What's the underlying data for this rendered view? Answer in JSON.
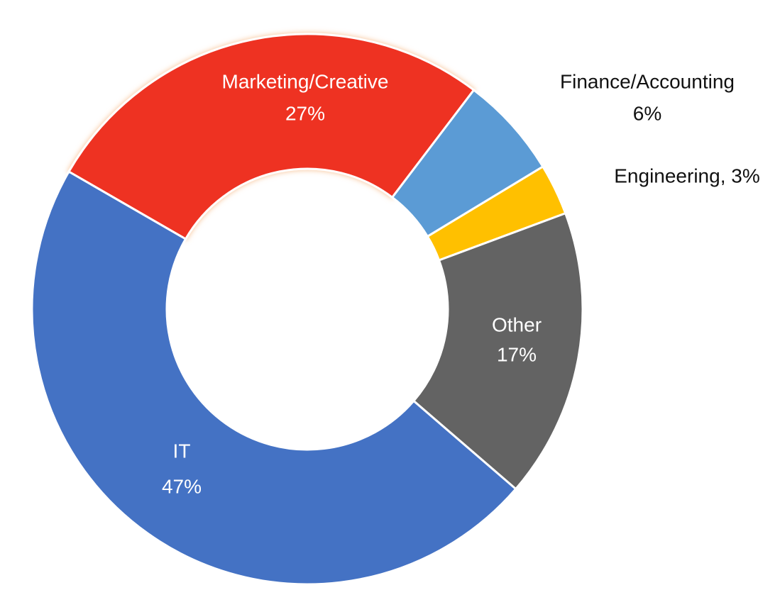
{
  "chart_data": {
    "type": "donut",
    "categories": [
      "Marketing/Creative",
      "Finance/Accounting",
      "Engineering",
      "Other",
      "IT"
    ],
    "values": [
      27,
      6,
      3,
      17,
      47
    ],
    "value_labels": [
      "27%",
      "6%",
      "Engineering, 3%",
      "17%",
      "47%"
    ],
    "colors": [
      "#ee3124",
      "#5b9bd5",
      "#ffc000",
      "#636363",
      "#4472c4"
    ]
  }
}
